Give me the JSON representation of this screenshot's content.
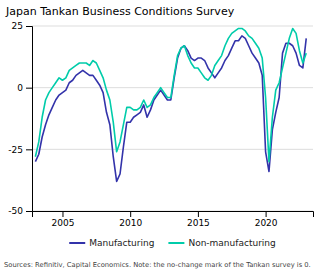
{
  "chart_data": {
    "type": "line",
    "title": "Japan Tankan Business Conditions Survey",
    "annotations": [
      "Sources: Refinitiv, Capital Economics. Note: the no-change mark of the Tankan survey is 0."
    ],
    "x": [
      2003.0,
      2003.25,
      2003.5,
      2003.75,
      2004.0,
      2004.25,
      2004.5,
      2004.75,
      2005.0,
      2005.25,
      2005.5,
      2005.75,
      2006.0,
      2006.25,
      2006.5,
      2006.75,
      2007.0,
      2007.25,
      2007.5,
      2007.75,
      2008.0,
      2008.25,
      2008.5,
      2008.75,
      2009.0,
      2009.25,
      2009.5,
      2009.75,
      2010.0,
      2010.25,
      2010.5,
      2010.75,
      2011.0,
      2011.25,
      2011.5,
      2011.75,
      2012.0,
      2012.25,
      2012.5,
      2012.75,
      2013.0,
      2013.25,
      2013.5,
      2013.75,
      2014.0,
      2014.25,
      2014.5,
      2014.75,
      2015.0,
      2015.25,
      2015.5,
      2015.75,
      2016.0,
      2016.25,
      2016.5,
      2016.75,
      2017.0,
      2017.25,
      2017.5,
      2017.75,
      2018.0,
      2018.25,
      2018.5,
      2018.75,
      2019.0,
      2019.25,
      2019.5,
      2019.75,
      2020.0,
      2020.25,
      2020.5,
      2020.75,
      2021.0,
      2021.25,
      2021.5,
      2021.75,
      2022.0,
      2022.25,
      2022.5,
      2022.75,
      2023.0
    ],
    "series": [
      {
        "name": "Manufacturing",
        "color": "#3333aa",
        "values": [
          -30,
          -27,
          -20,
          -15,
          -11,
          -8,
          -5,
          -3,
          -2,
          -1,
          2,
          3,
          5,
          6,
          7,
          6,
          5,
          5,
          3,
          1,
          -2,
          -10,
          -15,
          -28,
          -38,
          -35,
          -24,
          -14,
          -14,
          -12,
          -11,
          -10,
          -7,
          -12,
          -9,
          -5,
          -3,
          -1,
          -3,
          -5,
          -5,
          4,
          12,
          16,
          17,
          15,
          12,
          11,
          12,
          12,
          11,
          8,
          6,
          4,
          6,
          8,
          11,
          13,
          16,
          19,
          19,
          21,
          20,
          17,
          14,
          12,
          10,
          5,
          -26,
          -34,
          -17,
          -10,
          -4,
          14,
          18,
          18,
          17,
          14,
          9,
          8,
          20
        ]
      },
      {
        "name": "Non-manufacturing",
        "color": "#00ccaa",
        "values": [
          -28,
          -22,
          -12,
          -5,
          -2,
          0,
          2,
          4,
          3,
          4,
          7,
          8,
          9,
          10,
          10,
          10,
          9,
          11,
          10,
          7,
          4,
          -1,
          -5,
          -14,
          -26,
          -22,
          -15,
          -8,
          -8,
          -9,
          -9,
          -8,
          -5,
          -8,
          -7,
          -4,
          -2,
          0,
          -2,
          -4,
          -4,
          5,
          13,
          16,
          17,
          13,
          10,
          8,
          8,
          6,
          4,
          3,
          5,
          9,
          11,
          13,
          17,
          20,
          22,
          23,
          24,
          24,
          23,
          21,
          20,
          18,
          16,
          12,
          -4,
          -30,
          -12,
          -1,
          2,
          8,
          14,
          20,
          24,
          22,
          15,
          10,
          14
        ]
      }
    ],
    "xlim": [
      2002.75,
      2023.5
    ],
    "xticks": [
      2005,
      2010,
      2015,
      2020
    ],
    "ylim": [
      -50,
      25
    ],
    "yticks": [
      -50,
      -25,
      0,
      25
    ],
    "grid": true,
    "legend": "bottom"
  }
}
